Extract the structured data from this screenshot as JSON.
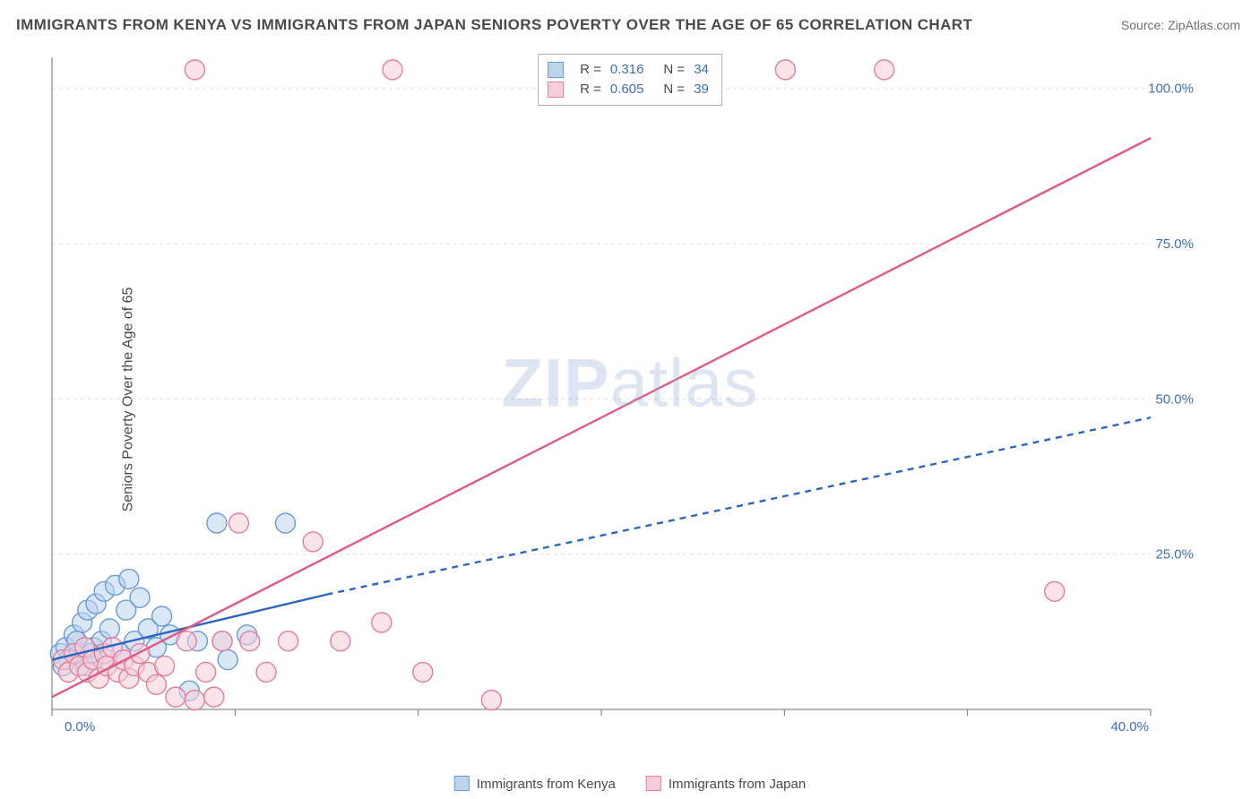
{
  "title": "IMMIGRANTS FROM KENYA VS IMMIGRANTS FROM JAPAN SENIORS POVERTY OVER THE AGE OF 65 CORRELATION CHART",
  "source_prefix": "Source: ",
  "source_link": "ZipAtlas.com",
  "ylabel": "Seniors Poverty Over the Age of 65",
  "watermark_a": "ZIP",
  "watermark_b": "atlas",
  "chart": {
    "type": "scatter",
    "xlim": [
      0,
      40
    ],
    "ylim": [
      0,
      105
    ],
    "y_ticks": [
      25,
      50,
      75,
      100
    ],
    "y_tick_labels": [
      "25.0%",
      "50.0%",
      "75.0%",
      "100.0%"
    ],
    "x_ticks": [
      0,
      6.67,
      13.33,
      20,
      26.67,
      33.33,
      40
    ],
    "x_tick_labels": [
      "0.0%",
      "",
      "",
      "",
      "",
      "",
      "40.0%"
    ],
    "background_color": "#ffffff",
    "grid_color": "#e1e1e1",
    "grid_dash": "4 4",
    "axis_color": "#8a8a8a",
    "tick_label_color": "#3b6fb6",
    "marker_radius": 11,
    "marker_stroke_width": 1.4,
    "series": [
      {
        "name": "Immigrants from Kenya",
        "fill": "#bcd3ec",
        "stroke": "#6a9bd8",
        "fill_opacity": 0.55,
        "line_color": "#2e67c0",
        "line_width": 2.4,
        "trend_solid": {
          "x1": 0,
          "y1": 8,
          "x2": 10,
          "y2": 18.5
        },
        "trend_dashed": {
          "x1": 10,
          "y1": 18.5,
          "x2": 40,
          "y2": 47,
          "dash": "7 6"
        },
        "R": "0.316",
        "N": "34",
        "points": [
          [
            0.3,
            9
          ],
          [
            0.5,
            10
          ],
          [
            0.6,
            8
          ],
          [
            0.8,
            12
          ],
          [
            1.0,
            9
          ],
          [
            1.1,
            14
          ],
          [
            1.2,
            7
          ],
          [
            1.3,
            16
          ],
          [
            1.5,
            10
          ],
          [
            1.6,
            17
          ],
          [
            1.8,
            11
          ],
          [
            1.9,
            19
          ],
          [
            2.0,
            8
          ],
          [
            2.1,
            13
          ],
          [
            2.3,
            20
          ],
          [
            2.5,
            9
          ],
          [
            2.7,
            16
          ],
          [
            2.8,
            21
          ],
          [
            3.0,
            11
          ],
          [
            3.2,
            18
          ],
          [
            3.5,
            13
          ],
          [
            3.8,
            10
          ],
          [
            4.0,
            15
          ],
          [
            4.3,
            12
          ],
          [
            5.0,
            3
          ],
          [
            5.3,
            11
          ],
          [
            6.0,
            30
          ],
          [
            6.2,
            11
          ],
          [
            6.4,
            8
          ],
          [
            7.1,
            12
          ],
          [
            8.5,
            30
          ],
          [
            0.4,
            7
          ],
          [
            0.9,
            11
          ],
          [
            1.4,
            9
          ]
        ]
      },
      {
        "name": "Immigrants from Japan",
        "fill": "#f6cdd8",
        "stroke": "#e37e9c",
        "fill_opacity": 0.55,
        "line_color": "#e05a86",
        "line_width": 2.4,
        "trend_solid": {
          "x1": 0,
          "y1": 2,
          "x2": 40,
          "y2": 92
        },
        "R": "0.605",
        "N": "39",
        "points": [
          [
            0.4,
            8
          ],
          [
            0.6,
            6
          ],
          [
            0.8,
            9
          ],
          [
            1.0,
            7
          ],
          [
            1.2,
            10
          ],
          [
            1.3,
            6
          ],
          [
            1.5,
            8
          ],
          [
            1.7,
            5
          ],
          [
            1.9,
            9
          ],
          [
            2.0,
            7
          ],
          [
            2.2,
            10
          ],
          [
            2.4,
            6
          ],
          [
            2.6,
            8
          ],
          [
            2.8,
            5
          ],
          [
            3.0,
            7
          ],
          [
            3.2,
            9
          ],
          [
            3.5,
            6
          ],
          [
            3.8,
            4
          ],
          [
            4.1,
            7
          ],
          [
            4.5,
            2
          ],
          [
            4.9,
            11
          ],
          [
            5.2,
            1.5
          ],
          [
            5.6,
            6
          ],
          [
            5.9,
            2
          ],
          [
            6.2,
            11
          ],
          [
            6.8,
            30
          ],
          [
            7.2,
            11
          ],
          [
            7.8,
            6
          ],
          [
            8.6,
            11
          ],
          [
            9.5,
            27
          ],
          [
            10.5,
            11
          ],
          [
            12.0,
            14
          ],
          [
            13.5,
            6
          ],
          [
            16.0,
            1.5
          ],
          [
            5.2,
            103
          ],
          [
            12.4,
            103
          ],
          [
            26.7,
            103
          ],
          [
            30.3,
            103
          ],
          [
            36.5,
            19
          ]
        ]
      }
    ]
  },
  "legend": {
    "x_items": [
      "Immigrants from Kenya",
      "Immigrants from Japan"
    ],
    "r_label": "R  =",
    "n_label": "N  ="
  }
}
